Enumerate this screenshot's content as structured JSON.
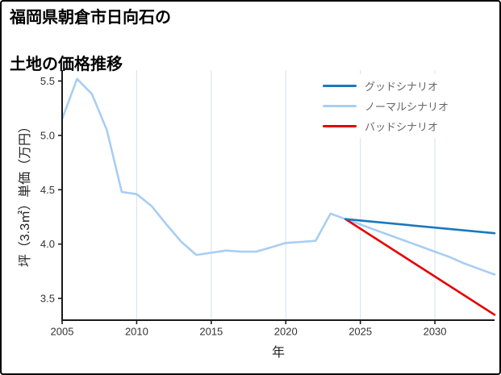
{
  "title": {
    "line1": "福岡県朝倉市日向石の",
    "line2": "土地の価格推移"
  },
  "chart_data": {
    "type": "line",
    "title": "福岡県朝倉市日向石の土地の価格推移",
    "xlabel": "年",
    "ylabel": "坪（3.3㎡）単価（万円）",
    "xlim": [
      2005,
      2034
    ],
    "ylim": [
      3.3,
      5.6
    ],
    "xticks": [
      2005,
      2010,
      2015,
      2020,
      2025,
      2030
    ],
    "xtick_labels": [
      "2005",
      "2010",
      "2015",
      "2020",
      "2025",
      "2030"
    ],
    "yticks": [
      3.5,
      4.0,
      4.5,
      5.0,
      5.5
    ],
    "ytick_labels": [
      "3.5",
      "4.0",
      "4.5",
      "5.0",
      "5.5"
    ],
    "grid": "vertical-only",
    "legend_position": "upper-right",
    "colors": {
      "grid": "#d9e6f2",
      "axis": "#1a1a1a",
      "tick_label": "#333333",
      "legend_text": "#666666"
    },
    "draw_order": [
      1,
      2,
      0
    ],
    "series": [
      {
        "id": "good-scenario",
        "name": "グッドシナリオ",
        "color": "#1a78be",
        "x": [
          2024,
          2034
        ],
        "y": [
          4.23,
          4.1
        ]
      },
      {
        "id": "normal-scenario",
        "name": "ノーマルシナリオ",
        "color": "#a8cef2",
        "x": [
          2005,
          2006,
          2007,
          2008,
          2009,
          2010,
          2011,
          2012,
          2013,
          2014,
          2015,
          2016,
          2017,
          2018,
          2019,
          2020,
          2021,
          2022,
          2023,
          2024,
          2025,
          2026,
          2027,
          2028,
          2029,
          2030,
          2031,
          2032,
          2033,
          2034
        ],
        "y": [
          5.15,
          5.52,
          5.38,
          5.05,
          4.48,
          4.46,
          4.35,
          4.18,
          4.02,
          3.9,
          3.92,
          3.94,
          3.93,
          3.93,
          3.97,
          4.01,
          4.02,
          4.03,
          4.28,
          4.23,
          4.18,
          4.13,
          4.08,
          4.03,
          3.98,
          3.93,
          3.88,
          3.82,
          3.77,
          3.72
        ]
      },
      {
        "id": "bad-scenario",
        "name": "バッドシナリオ",
        "color": "#e60000",
        "x": [
          2024,
          2034
        ],
        "y": [
          4.23,
          3.35
        ]
      }
    ]
  }
}
